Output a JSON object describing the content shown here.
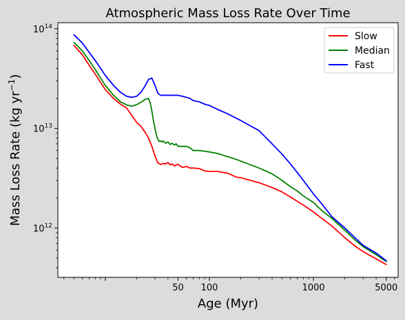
{
  "chart_data": {
    "type": "line",
    "title": "Atmospheric Mass Loss Rate Over Time",
    "xlabel": "Age (Myr)",
    "ylabel": "Mass Loss Rate (kg yr",
    "ylabel_sup": "−1",
    "ylabel_close": ")",
    "xscale": "log",
    "yscale": "log",
    "xlim": [
      3.5,
      6500
    ],
    "ylim": [
      320000000000.0,
      115000000000000.0
    ],
    "grid": false,
    "legend_position": "top-right",
    "xticks": [
      {
        "value": 50,
        "label": "50"
      },
      {
        "value": 100,
        "label": "100"
      },
      {
        "value": 1000,
        "label": "1000"
      },
      {
        "value": 5000,
        "label": "5000"
      }
    ],
    "yticks": [
      {
        "value": 1000000000000.0,
        "base": "10",
        "exp": "12"
      },
      {
        "value": 10000000000000.0,
        "base": "10",
        "exp": "13"
      },
      {
        "value": 100000000000000.0,
        "base": "10",
        "exp": "14"
      }
    ],
    "colors": {
      "background": "#dcdcdc",
      "plot_bg": "#ffffff",
      "axes": "#000000"
    },
    "series": [
      {
        "name": "Slow",
        "color": "#ff0000",
        "x": [
          5,
          6,
          7,
          8,
          9,
          10,
          12,
          14,
          16,
          18,
          20,
          22,
          24,
          26,
          28,
          30,
          32,
          34,
          36,
          38,
          40,
          42,
          44,
          46,
          48,
          50,
          55,
          60,
          65,
          70,
          80,
          90,
          100,
          120,
          150,
          180,
          200,
          300,
          400,
          500,
          600,
          700,
          800,
          1000,
          1200,
          1500,
          2000,
          2500,
          3000,
          4000,
          5000
        ],
        "y": [
          68000000000000.0,
          55000000000000.0,
          43000000000000.0,
          35000000000000.0,
          29000000000000.0,
          24500000000000.0,
          20000000000000.0,
          17500000000000.0,
          16000000000000.0,
          13500000000000.0,
          11500000000000.0,
          10500000000000.0,
          9200000000000.0,
          8000000000000.0,
          6600000000000.0,
          5300000000000.0,
          4500000000000.0,
          4350000000000.0,
          4450000000000.0,
          4400000000000.0,
          4550000000000.0,
          4300000000000.0,
          4400000000000.0,
          4200000000000.0,
          4300000000000.0,
          4350000000000.0,
          4050000000000.0,
          4150000000000.0,
          4000000000000.0,
          4000000000000.0,
          3950000000000.0,
          3750000000000.0,
          3700000000000.0,
          3700000000000.0,
          3550000000000.0,
          3250000000000.0,
          3200000000000.0,
          2850000000000.0,
          2550000000000.0,
          2300000000000.0,
          2050000000000.0,
          1850000000000.0,
          1700000000000.0,
          1450000000000.0,
          1250000000000.0,
          1050000000000.0,
          800000000000.0,
          660000000000.0,
          580000000000.0,
          490000000000.0,
          430000000000.0
        ]
      },
      {
        "name": "Median",
        "color": "#008000",
        "x": [
          5,
          6,
          7,
          8,
          9,
          10,
          12,
          14,
          16,
          18,
          20,
          22,
          24,
          26,
          27,
          28,
          29,
          30,
          31,
          32,
          33,
          34,
          35,
          36,
          38,
          40,
          42,
          44,
          46,
          48,
          50,
          55,
          60,
          65,
          70,
          80,
          90,
          100,
          120,
          150,
          180,
          200,
          300,
          400,
          500,
          600,
          700,
          800,
          1000,
          1200,
          1500,
          2000,
          2500,
          3000,
          4000,
          5000
        ],
        "y": [
          73000000000000.0,
          60000000000000.0,
          48000000000000.0,
          39000000000000.0,
          32000000000000.0,
          27000000000000.0,
          21500000000000.0,
          18500000000000.0,
          17200000000000.0,
          16700000000000.0,
          17300000000000.0,
          18300000000000.0,
          19500000000000.0,
          20000000000000.0,
          18000000000000.0,
          15000000000000.0,
          12000000000000.0,
          10000000000000.0,
          8500000000000.0,
          7800000000000.0,
          7400000000000.0,
          7500000000000.0,
          7300000000000.0,
          7500000000000.0,
          7100000000000.0,
          7300000000000.0,
          6900000000000.0,
          7100000000000.0,
          6800000000000.0,
          7000000000000.0,
          6600000000000.0,
          6600000000000.0,
          6600000000000.0,
          6400000000000.0,
          6000000000000.0,
          6000000000000.0,
          5900000000000.0,
          5800000000000.0,
          5600000000000.0,
          5200000000000.0,
          4900000000000.0,
          4700000000000.0,
          4000000000000.0,
          3500000000000.0,
          3000000000000.0,
          2600000000000.0,
          2350000000000.0,
          2100000000000.0,
          1800000000000.0,
          1500000000000.0,
          1250000000000.0,
          950000000000.0,
          760000000000.0,
          650000000000.0,
          540000000000.0,
          460000000000.0
        ]
      },
      {
        "name": "Fast",
        "color": "#0000ff",
        "x": [
          5,
          6,
          7,
          8,
          9,
          10,
          12,
          14,
          16,
          18,
          20,
          22,
          24,
          26,
          28,
          30,
          32,
          34,
          36,
          38,
          40,
          42,
          44,
          46,
          48,
          50,
          55,
          60,
          65,
          70,
          80,
          90,
          100,
          120,
          150,
          180,
          200,
          300,
          400,
          500,
          600,
          700,
          800,
          1000,
          1200,
          1500,
          2000,
          2500,
          3000,
          4000,
          5000
        ],
        "y": [
          87000000000000.0,
          72000000000000.0,
          58000000000000.0,
          48000000000000.0,
          40000000000000.0,
          34000000000000.0,
          27000000000000.0,
          23000000000000.0,
          21000000000000.0,
          20500000000000.0,
          21000000000000.0,
          23000000000000.0,
          26500000000000.0,
          31000000000000.0,
          32000000000000.0,
          27000000000000.0,
          22500000000000.0,
          21500000000000.0,
          21500000000000.0,
          21500000000000.0,
          21500000000000.0,
          21500000000000.0,
          21500000000000.0,
          21500000000000.0,
          21500000000000.0,
          21500000000000.0,
          21000000000000.0,
          20500000000000.0,
          20000000000000.0,
          19000000000000.0,
          18500000000000.0,
          17500000000000.0,
          17000000000000.0,
          15500000000000.0,
          14000000000000.0,
          12700000000000.0,
          12000000000000.0,
          9500000000000.0,
          7000000000000.0,
          5500000000000.0,
          4400000000000.0,
          3600000000000.0,
          3000000000000.0,
          2200000000000.0,
          1750000000000.0,
          1300000000000.0,
          1000000000000.0,
          800000000000.0,
          670000000000.0,
          560000000000.0,
          470000000000.0
        ]
      }
    ]
  }
}
